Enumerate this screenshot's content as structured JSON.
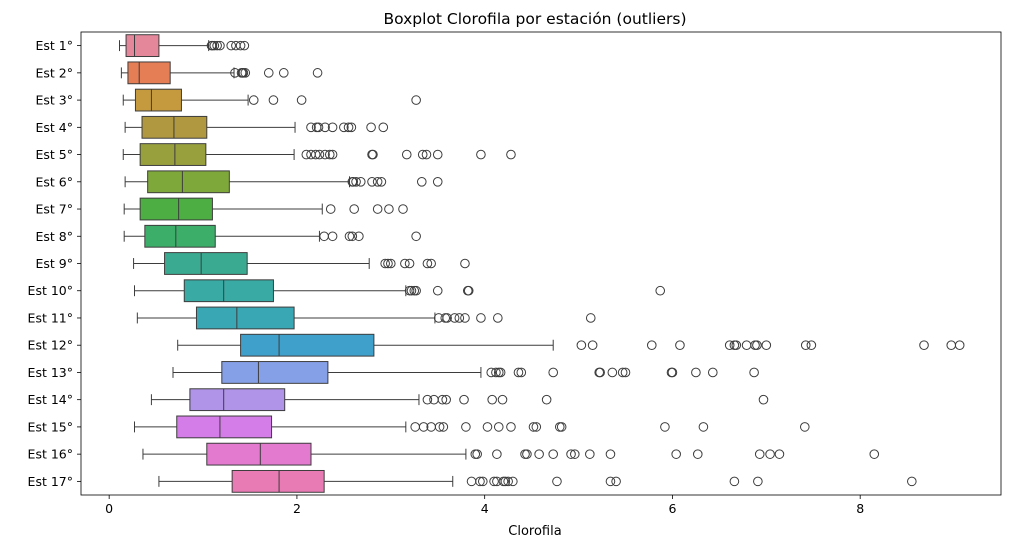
{
  "chart_data": {
    "type": "boxplot",
    "orientation": "horizontal",
    "title": "Boxplot Clorofila por estación (outliers)",
    "xlabel": "Clorofila",
    "ylabel": "",
    "xlim": [
      -0.3,
      9.5
    ],
    "xticks": [
      0,
      2,
      4,
      6,
      8
    ],
    "grid": false,
    "legend": "none",
    "series": [
      {
        "category": "Est 1°",
        "color": "#e5879b",
        "whisker_low": 0.11,
        "q1": 0.18,
        "median": 0.27,
        "q3": 0.53,
        "whisker_high": 1.06,
        "outliers": [
          1.09,
          1.1,
          1.12,
          1.15,
          1.18,
          1.3,
          1.35,
          1.4,
          1.44
        ]
      },
      {
        "category": "Est 2°",
        "color": "#e57d55",
        "whisker_low": 0.13,
        "q1": 0.2,
        "median": 0.32,
        "q3": 0.65,
        "whisker_high": 1.33,
        "outliers": [
          1.34,
          1.41,
          1.42,
          1.43,
          1.45,
          1.7,
          1.86,
          2.22
        ]
      },
      {
        "category": "Est 3°",
        "color": "#c59a3e",
        "whisker_low": 0.15,
        "q1": 0.28,
        "median": 0.45,
        "q3": 0.77,
        "whisker_high": 1.48,
        "outliers": [
          1.54,
          1.75,
          2.05,
          3.27
        ]
      },
      {
        "category": "Est 4°",
        "color": "#b09840",
        "whisker_low": 0.17,
        "q1": 0.35,
        "median": 0.69,
        "q3": 1.04,
        "whisker_high": 1.98,
        "outliers": [
          2.15,
          2.21,
          2.23,
          2.3,
          2.38,
          2.5,
          2.55,
          2.58,
          2.79,
          2.92
        ]
      },
      {
        "category": "Est 5°",
        "color": "#98a03e",
        "whisker_low": 0.15,
        "q1": 0.33,
        "median": 0.7,
        "q3": 1.03,
        "whisker_high": 1.97,
        "outliers": [
          2.1,
          2.15,
          2.2,
          2.24,
          2.3,
          2.35,
          2.38,
          2.8,
          2.81,
          3.17,
          3.34,
          3.38,
          3.5,
          3.96,
          4.28
        ]
      },
      {
        "category": "Est 6°",
        "color": "#7fa83b",
        "whisker_low": 0.17,
        "q1": 0.41,
        "median": 0.78,
        "q3": 1.28,
        "whisker_high": 2.56,
        "outliers": [
          2.59,
          2.6,
          2.63,
          2.68,
          2.8,
          2.86,
          2.9,
          3.33,
          3.5
        ]
      },
      {
        "category": "Est 7°",
        "color": "#4cae43",
        "whisker_low": 0.16,
        "q1": 0.33,
        "median": 0.74,
        "q3": 1.1,
        "whisker_high": 2.27,
        "outliers": [
          2.36,
          2.61,
          2.86,
          2.98,
          3.13
        ]
      },
      {
        "category": "Est 8°",
        "color": "#3cae6a",
        "whisker_low": 0.16,
        "q1": 0.38,
        "median": 0.71,
        "q3": 1.13,
        "whisker_high": 2.24,
        "outliers": [
          2.29,
          2.38,
          2.56,
          2.59,
          2.66,
          3.27
        ]
      },
      {
        "category": "Est 9°",
        "color": "#3aab90",
        "whisker_low": 0.26,
        "q1": 0.59,
        "median": 0.98,
        "q3": 1.47,
        "whisker_high": 2.77,
        "outliers": [
          2.94,
          2.97,
          3.0,
          3.15,
          3.2,
          3.39,
          3.43,
          3.79
        ]
      },
      {
        "category": "Est 10°",
        "color": "#39aaa4",
        "whisker_low": 0.27,
        "q1": 0.8,
        "median": 1.22,
        "q3": 1.75,
        "whisker_high": 3.16,
        "outliers": [
          3.2,
          3.22,
          3.25,
          3.27,
          3.5,
          3.82,
          3.83,
          5.87
        ]
      },
      {
        "category": "Est 11°",
        "color": "#3aa7b4",
        "whisker_low": 0.3,
        "q1": 0.93,
        "median": 1.36,
        "q3": 1.97,
        "whisker_high": 3.47,
        "outliers": [
          3.51,
          3.58,
          3.6,
          3.68,
          3.73,
          3.79,
          3.96,
          4.14,
          5.13
        ]
      },
      {
        "category": "Est 12°",
        "color": "#3fa0cb",
        "whisker_low": 0.73,
        "q1": 1.4,
        "median": 1.81,
        "q3": 2.82,
        "whisker_high": 4.73,
        "outliers": [
          5.03,
          5.15,
          5.78,
          6.08,
          6.61,
          6.66,
          6.68,
          6.79,
          6.88,
          6.9,
          7.0,
          7.42,
          7.48,
          8.68,
          8.97,
          9.06
        ]
      },
      {
        "category": "Est 13°",
        "color": "#86a0e8",
        "whisker_low": 0.68,
        "q1": 1.2,
        "median": 1.59,
        "q3": 2.33,
        "whisker_high": 3.96,
        "outliers": [
          4.07,
          4.12,
          4.15,
          4.17,
          4.36,
          4.39,
          4.73,
          5.22,
          5.23,
          5.36,
          5.47,
          5.5,
          5.99,
          6.0,
          6.25,
          6.43,
          6.87
        ]
      },
      {
        "category": "Est 14°",
        "color": "#b094e8",
        "whisker_low": 0.45,
        "q1": 0.86,
        "median": 1.22,
        "q3": 1.87,
        "whisker_high": 3.3,
        "outliers": [
          3.39,
          3.46,
          3.55,
          3.59,
          3.78,
          4.08,
          4.19,
          4.66,
          6.97
        ]
      },
      {
        "category": "Est 15°",
        "color": "#d47de8",
        "whisker_low": 0.27,
        "q1": 0.72,
        "median": 1.18,
        "q3": 1.73,
        "whisker_high": 3.16,
        "outliers": [
          3.26,
          3.35,
          3.43,
          3.52,
          3.56,
          3.8,
          4.03,
          4.15,
          4.28,
          4.52,
          4.55,
          4.8,
          4.82,
          5.92,
          6.33,
          7.41
        ]
      },
      {
        "category": "Est 16°",
        "color": "#e37acf",
        "whisker_low": 0.36,
        "q1": 1.04,
        "median": 1.61,
        "q3": 2.15,
        "whisker_high": 3.8,
        "outliers": [
          3.9,
          3.92,
          4.13,
          4.43,
          4.45,
          4.58,
          4.73,
          4.92,
          4.96,
          5.12,
          5.34,
          6.04,
          6.27,
          6.93,
          7.04,
          7.14,
          8.15
        ]
      },
      {
        "category": "Est 17°",
        "color": "#e87ab4",
        "whisker_low": 0.53,
        "q1": 1.31,
        "median": 1.81,
        "q3": 2.29,
        "whisker_high": 3.66,
        "outliers": [
          3.86,
          3.95,
          3.98,
          4.1,
          4.13,
          4.2,
          4.22,
          4.25,
          4.3,
          4.77,
          5.34,
          5.4,
          6.66,
          6.91,
          8.55
        ]
      }
    ]
  }
}
